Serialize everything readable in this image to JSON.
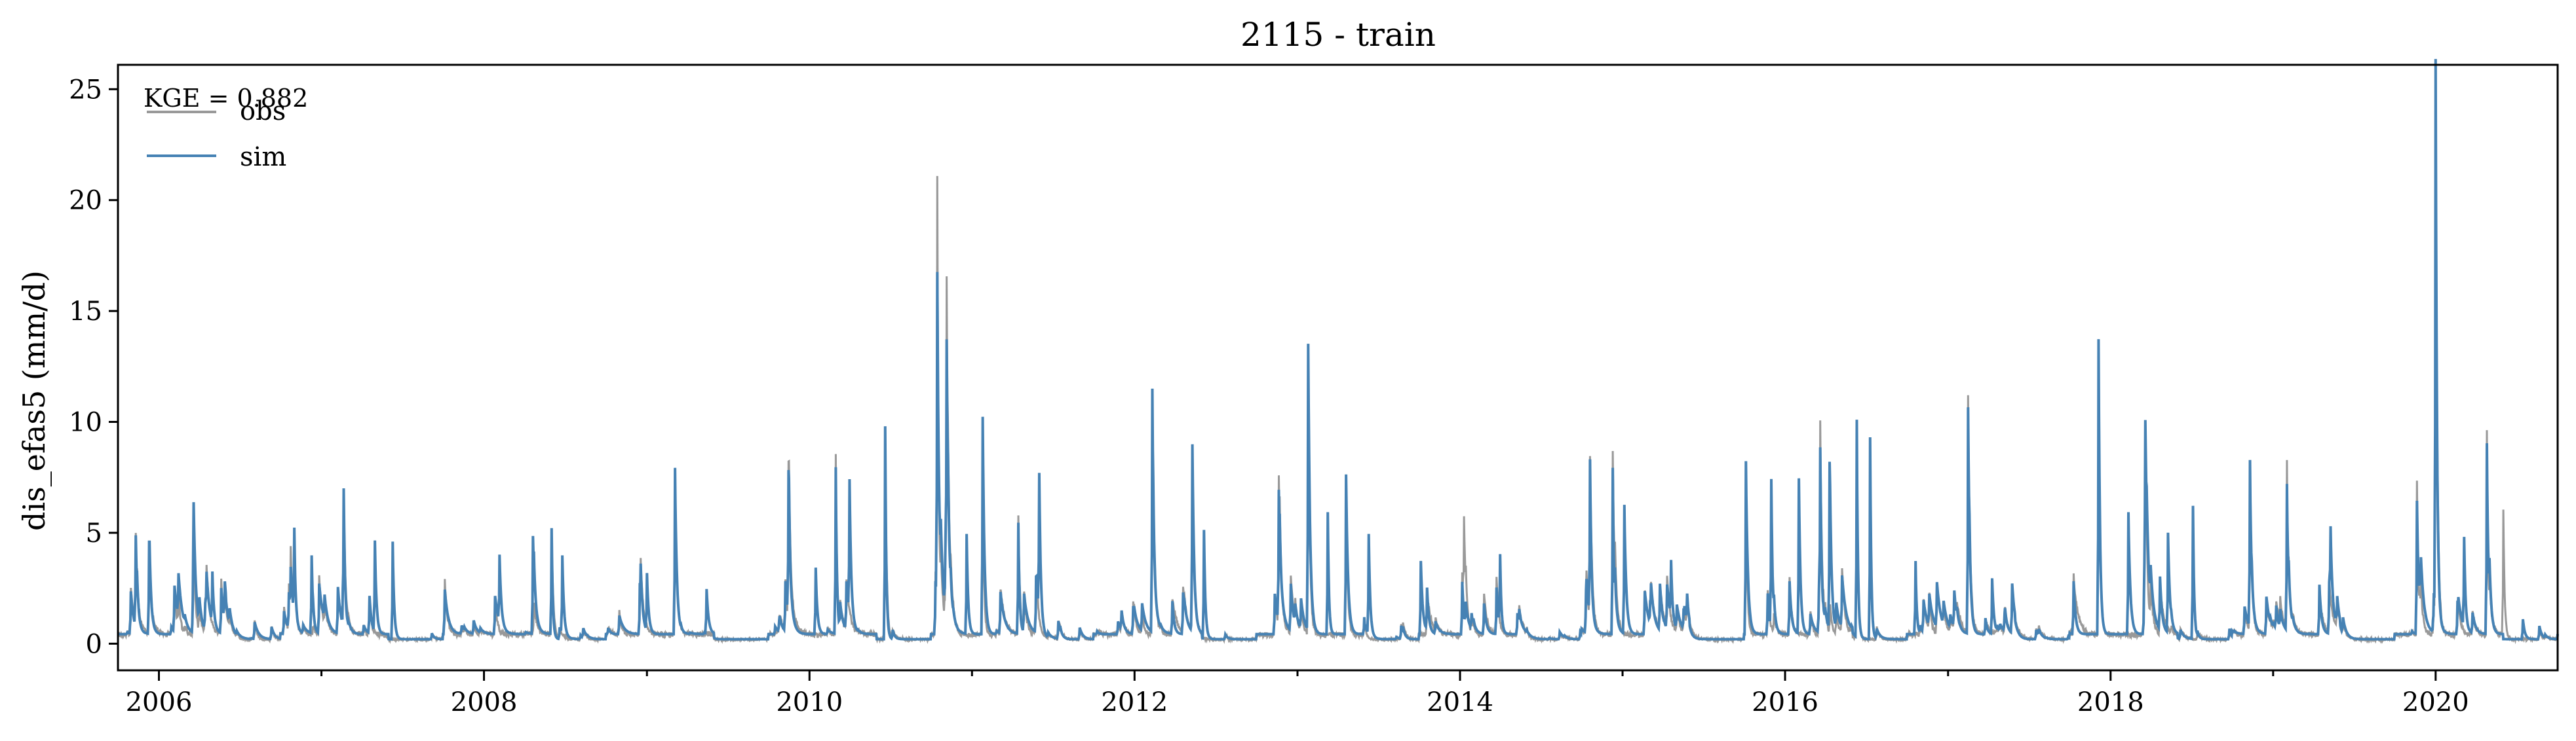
{
  "chart_data": {
    "type": "line",
    "title": "2115 - train",
    "xlabel": "",
    "ylabel": "dis_efas5 (mm/d)",
    "annotation": "KGE = 0.882",
    "xlim": [
      "2005-10-01",
      "2020-10-01"
    ],
    "ylim": [
      -1.2,
      26.1
    ],
    "x_tick_labels": [
      "2006",
      "2008",
      "2010",
      "2012",
      "2014",
      "2016",
      "2018",
      "2020"
    ],
    "y_ticks": [
      0,
      5,
      10,
      15,
      20,
      25
    ],
    "grid": false,
    "legend": {
      "position": "top-left",
      "entries": [
        "obs",
        "sim"
      ]
    },
    "colors": {
      "obs": "#999999",
      "sim": "#4682b4"
    },
    "peaks": {
      "sim": [
        [
          "2005-11-10",
          4.1
        ],
        [
          "2005-12-10",
          3.7
        ],
        [
          "2006-03-20",
          3.8
        ],
        [
          "2006-05-01",
          2.3
        ],
        [
          "2006-11-01",
          3.9
        ],
        [
          "2006-12-10",
          3.5
        ],
        [
          "2007-02-20",
          5.8
        ],
        [
          "2007-05-01",
          4.1
        ],
        [
          "2007-06-10",
          4.4
        ],
        [
          "2008-02-05",
          3.0
        ],
        [
          "2008-04-20",
          4.2
        ],
        [
          "2008-06-01",
          5.0
        ],
        [
          "2008-06-25",
          3.5
        ],
        [
          "2009-01-01",
          2.6
        ],
        [
          "2009-03-05",
          7.5
        ],
        [
          "2009-05-15",
          2.0
        ],
        [
          "2009-11-15",
          5.8
        ],
        [
          "2010-01-15",
          3.0
        ],
        [
          "2010-03-01",
          7.5
        ],
        [
          "2010-04-01",
          6.0
        ],
        [
          "2010-06-20",
          9.6
        ],
        [
          "2010-10-15",
          14.8
        ],
        [
          "2010-11-05",
          10.9
        ],
        [
          "2010-12-20",
          4.5
        ],
        [
          "2011-01-25",
          9.8
        ],
        [
          "2011-04-15",
          5.0
        ],
        [
          "2011-06-01",
          6.5
        ],
        [
          "2012-02-10",
          10.7
        ],
        [
          "2012-05-10",
          7.5
        ],
        [
          "2012-06-05",
          4.9
        ],
        [
          "2012-11-20",
          5.5
        ],
        [
          "2013-01-25",
          12.9
        ],
        [
          "2013-03-10",
          5.5
        ],
        [
          "2013-04-20",
          7.2
        ],
        [
          "2013-06-10",
          4.5
        ],
        [
          "2013-10-05",
          3.3
        ],
        [
          "2014-04-01",
          3.2
        ],
        [
          "2014-10-20",
          7.0
        ],
        [
          "2014-12-10",
          7.5
        ],
        [
          "2015-01-05",
          5.8
        ],
        [
          "2015-04-20",
          2.5
        ],
        [
          "2015-10-05",
          7.8
        ],
        [
          "2015-12-01",
          6.7
        ],
        [
          "2016-02-01",
          7.0
        ],
        [
          "2016-03-20",
          7.3
        ],
        [
          "2016-04-10",
          7.2
        ],
        [
          "2016-06-10",
          9.8
        ],
        [
          "2016-07-10",
          9.1
        ],
        [
          "2016-10-20",
          3.3
        ],
        [
          "2017-02-15",
          10.2
        ],
        [
          "2017-04-10",
          2.5
        ],
        [
          "2017-12-05",
          13.3
        ],
        [
          "2018-02-10",
          5.5
        ],
        [
          "2018-03-20",
          6.9
        ],
        [
          "2018-05-10",
          4.5
        ],
        [
          "2018-07-05",
          6.0
        ],
        [
          "2018-11-10",
          7.5
        ],
        [
          "2019-02-01",
          6.6
        ],
        [
          "2019-05-10",
          3.2
        ],
        [
          "2019-11-20",
          6.0
        ],
        [
          "2020-01-01",
          24.8
        ],
        [
          "2020-03-05",
          4.0
        ],
        [
          "2020-04-25",
          8.6
        ],
        [
          "2020-07-15",
          0.9
        ]
      ],
      "obs": [
        [
          "2005-11-10",
          4.0
        ],
        [
          "2005-12-10",
          3.6
        ],
        [
          "2006-03-20",
          3.5
        ],
        [
          "2006-11-01",
          3.7
        ],
        [
          "2007-02-20",
          5.5
        ],
        [
          "2008-06-01",
          4.8
        ],
        [
          "2009-03-05",
          7.3
        ],
        [
          "2009-11-15",
          6.4
        ],
        [
          "2010-03-01",
          8.2
        ],
        [
          "2010-06-20",
          9.3
        ],
        [
          "2010-10-15",
          19.3
        ],
        [
          "2010-11-05",
          14.2
        ],
        [
          "2011-01-25",
          9.5
        ],
        [
          "2011-04-15",
          5.3
        ],
        [
          "2012-02-10",
          10.5
        ],
        [
          "2012-05-10",
          7.3
        ],
        [
          "2012-11-20",
          6.4
        ],
        [
          "2013-01-25",
          12.6
        ],
        [
          "2013-04-20",
          7.0
        ],
        [
          "2014-01-10",
          4.2
        ],
        [
          "2014-10-20",
          7.4
        ],
        [
          "2014-12-10",
          8.2
        ],
        [
          "2015-10-05",
          7.5
        ],
        [
          "2016-03-20",
          8.4
        ],
        [
          "2016-06-10",
          9.5
        ],
        [
          "2017-02-15",
          10.7
        ],
        [
          "2017-12-05",
          13.0
        ],
        [
          "2018-03-20",
          6.7
        ],
        [
          "2018-11-10",
          7.3
        ],
        [
          "2019-02-01",
          7.7
        ],
        [
          "2019-11-20",
          6.9
        ],
        [
          "2020-01-01",
          24.0
        ],
        [
          "2020-04-25",
          9.3
        ],
        [
          "2020-06-01",
          5.8
        ]
      ]
    }
  }
}
